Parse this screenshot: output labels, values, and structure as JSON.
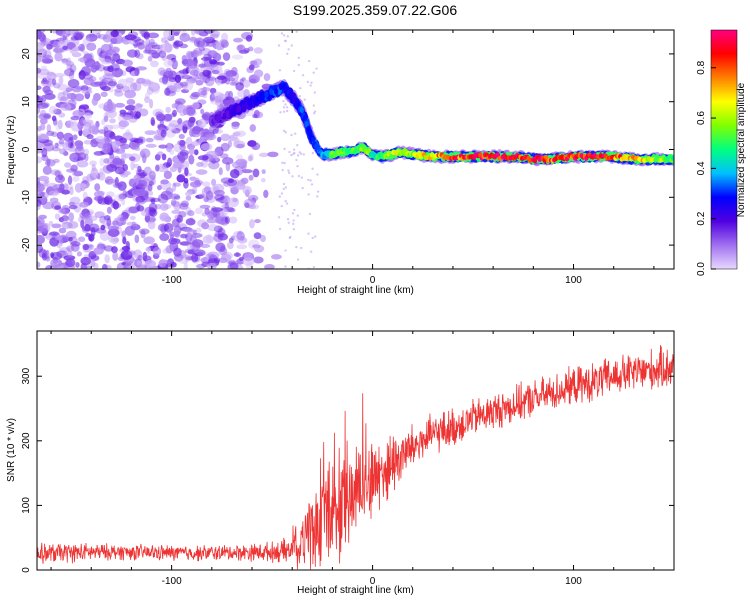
{
  "title": "S199.2025.359.07.22.G06",
  "chart_data": [
    {
      "type": "heatmap",
      "name": "spectrogram",
      "xlabel": "Height of straight line (km)",
      "ylabel": "Frequency (Hz)",
      "xlim": [
        -167,
        150
      ],
      "ylim": [
        -25,
        25
      ],
      "xticks": [
        -100,
        0,
        100
      ],
      "yticks": [
        -20,
        -10,
        0,
        10,
        20
      ],
      "colorbar": {
        "label": "Normalized spectral amplitude",
        "range": [
          0,
          0.95
        ],
        "ticks": [
          0.0,
          0.2,
          0.4,
          0.6,
          0.8
        ],
        "colormap": [
          "#e8d8ff",
          "#a070f0",
          "#5000e0",
          "#0000ff",
          "#00c0ff",
          "#00ff80",
          "#80ff00",
          "#ffff00",
          "#ff8000",
          "#ff0000",
          "#ff0080"
        ]
      },
      "noise_region": {
        "x": [
          -167,
          -47
        ],
        "y": [
          -25,
          25
        ],
        "amplitude": [
          0.02,
          0.18
        ]
      },
      "signal_trace": {
        "x": [
          -80,
          -70,
          -60,
          -50,
          -44,
          -40,
          -35,
          -30,
          -25,
          -20,
          -15,
          -10,
          -5,
          0,
          5,
          10,
          15,
          20,
          30,
          40,
          50,
          60,
          70,
          80,
          90,
          100,
          110,
          120,
          130,
          140,
          150
        ],
        "y": [
          6,
          8,
          10,
          12,
          13,
          11,
          8,
          2,
          -1,
          -1,
          -0.5,
          -0.5,
          0.5,
          -1,
          -1.5,
          -1,
          -0.5,
          -1,
          -1.5,
          -1.5,
          -1.5,
          -1.5,
          -1.5,
          -2,
          -2,
          -1.5,
          -1.5,
          -1.5,
          -2,
          -2,
          -2
        ],
        "amplitude": [
          0.15,
          0.2,
          0.25,
          0.3,
          0.3,
          0.25,
          0.3,
          0.3,
          0.35,
          0.5,
          0.55,
          0.5,
          0.6,
          0.45,
          0.55,
          0.6,
          0.65,
          0.6,
          0.7,
          0.8,
          0.85,
          0.9,
          0.85,
          0.9,
          0.8,
          0.85,
          0.9,
          0.8,
          0.7,
          0.6,
          0.5
        ]
      }
    },
    {
      "type": "line",
      "name": "snr",
      "xlabel": "Height of straight line (km)",
      "ylabel": "SNR (10 * v/v)",
      "xlim": [
        -167,
        150
      ],
      "ylim": [
        0,
        370
      ],
      "xticks": [
        -100,
        0,
        100
      ],
      "yticks": [
        0,
        100,
        200,
        300
      ],
      "color": "#ee3333",
      "series": [
        {
          "name": "SNR",
          "x": [
            -167,
            -150,
            -130,
            -110,
            -90,
            -70,
            -50,
            -40,
            -34,
            -30,
            -25,
            -20,
            -15,
            -10,
            -5,
            0,
            5,
            10,
            20,
            30,
            40,
            50,
            60,
            70,
            80,
            90,
            100,
            110,
            120,
            130,
            140,
            150
          ],
          "values": [
            25,
            27,
            28,
            27,
            26,
            27,
            28,
            30,
            45,
            60,
            75,
            90,
            100,
            110,
            130,
            140,
            150,
            165,
            190,
            210,
            220,
            235,
            245,
            255,
            265,
            275,
            285,
            290,
            300,
            305,
            310,
            315
          ],
          "noise_amplitude": [
            15,
            15,
            12,
            12,
            12,
            12,
            15,
            20,
            50,
            60,
            70,
            80,
            85,
            80,
            70,
            60,
            55,
            50,
            35,
            30,
            30,
            28,
            28,
            28,
            28,
            28,
            28,
            30,
            30,
            30,
            32,
            32
          ]
        }
      ]
    }
  ]
}
